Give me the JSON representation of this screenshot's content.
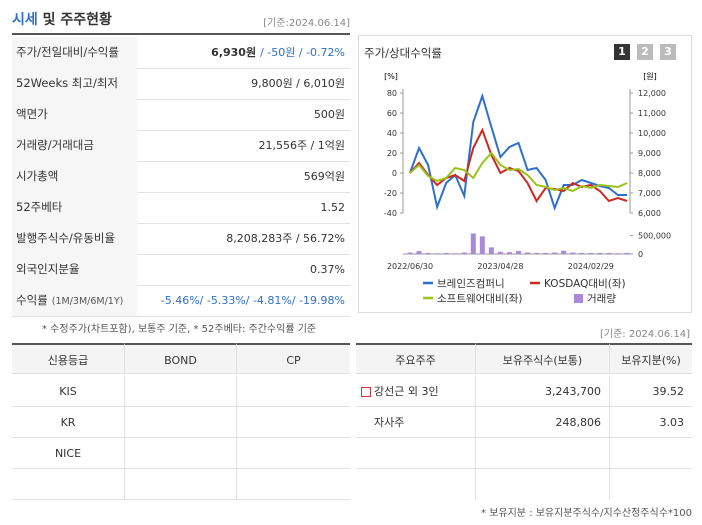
{
  "header": {
    "title_highlight": "시세",
    "title_rest": "및 주주현황",
    "date": "[기준:2024.06.14]"
  },
  "summary": {
    "rows": [
      {
        "label": "주가/전일대비/수익률",
        "value": "6,930원",
        "change": "/ -50원 / -0.72%"
      },
      {
        "label": "52Weeks 최고/최저",
        "value": "9,800원 / 6,010원"
      },
      {
        "label": "액면가",
        "value": "500원"
      },
      {
        "label": "거래량/거래대금",
        "value": "21,556주 / 1억원"
      },
      {
        "label": "시가총액",
        "value": "569억원"
      },
      {
        "label": "52주베타",
        "value": "1.52"
      },
      {
        "label": "발행주식수/유동비율",
        "value": "8,208,283주 / 56.72%"
      },
      {
        "label": "외국인지분율",
        "value": "0.37%"
      },
      {
        "label": "수익률",
        "label_sub": "(1M/3M/6M/1Y)",
        "change": "-5.46%/ -5.33%/ -4.81%/ -19.98%"
      }
    ],
    "note": "* 수정주가(차트포함), 보통주 기준, * 52주베타: 주간수익률 기준"
  },
  "chart_panel": {
    "title": "주가/상대수익률",
    "buttons": [
      "1",
      "2",
      "3"
    ]
  },
  "chart_data": {
    "type": "line",
    "categories": [
      "2022/06/30",
      null,
      null,
      null,
      null,
      null,
      null,
      null,
      null,
      null,
      "2023/04/28",
      null,
      null,
      null,
      null,
      null,
      null,
      null,
      null,
      null,
      "2024/02/29",
      null,
      null,
      null,
      null
    ],
    "y_unit": "[%]",
    "y2_unit": "[원]",
    "ylim": [
      -40,
      80
    ],
    "yticks": [
      -40,
      -20,
      0,
      20,
      40,
      60,
      80
    ],
    "y2lim": [
      6000,
      12000
    ],
    "y2ticks": [
      {
        "value": 6000,
        "label": "6,000"
      },
      {
        "value": 7000,
        "label": "7,000"
      },
      {
        "value": 8000,
        "label": "8,000"
      },
      {
        "value": 9000,
        "label": "9,000"
      },
      {
        "value": 10000,
        "label": "10,000"
      },
      {
        "value": 11000,
        "label": "11,000"
      },
      {
        "value": 12000,
        "label": "12,000"
      }
    ],
    "grid": false,
    "series": [
      {
        "name": "브레인즈컴퍼니",
        "color": "#2f6fd0",
        "values": [
          0,
          25,
          8,
          -34,
          -10,
          -2,
          -23,
          51,
          77,
          46,
          16,
          26,
          30,
          3,
          5,
          -7,
          -35,
          -12,
          -12,
          -7,
          -10,
          -13,
          -15,
          -22,
          -22
        ]
      },
      {
        "name": "KOSDAQ대비(좌)",
        "color": "#cc2a20",
        "values": [
          0,
          10,
          -2,
          -12,
          -5,
          -2,
          -8,
          25,
          43,
          18,
          0,
          5,
          2,
          -10,
          -28,
          -15,
          -16,
          -18,
          -10,
          -14,
          -12,
          -18,
          -28,
          -25,
          -28
        ]
      },
      {
        "name": "소프트웨어대비(좌)",
        "color": "#9cc21a",
        "values": [
          0,
          8,
          -3,
          -8,
          -5,
          5,
          3,
          -5,
          10,
          20,
          8,
          3,
          4,
          -2,
          -12,
          -14,
          -17,
          -15,
          -18,
          -13,
          -15,
          -12,
          -13,
          -14,
          -10
        ]
      }
    ],
    "volume": {
      "name": "거래량",
      "color": "#a98ad8",
      "lim": [
        0,
        600000
      ],
      "ticks": [
        0,
        {
          "value": 500000,
          "label": "500,000"
        }
      ],
      "values": [
        40000,
        80000,
        30000,
        20000,
        30000,
        20000,
        40000,
        560000,
        480000,
        180000,
        60000,
        50000,
        80000,
        40000,
        30000,
        30000,
        40000,
        90000,
        40000,
        30000,
        30000,
        30000,
        30000,
        20000,
        30000
      ]
    }
  },
  "date2": "[기준: 2024.06.14]",
  "credit": {
    "headers": [
      "신용등급",
      "BOND",
      "CP"
    ],
    "rows": [
      "KIS",
      "KR",
      "NICE"
    ]
  },
  "holders": {
    "headers": [
      "주요주주",
      "보유주식수(보통)",
      "보유지분(%)"
    ],
    "rows": [
      [
        "강선근 외 3인",
        "3,243,700",
        "39.52"
      ],
      [
        "자사주",
        "248,806",
        "3.03"
      ]
    ]
  },
  "footnote": "* 보유지분 : 보유지분주식수/지수산정주식수*100"
}
